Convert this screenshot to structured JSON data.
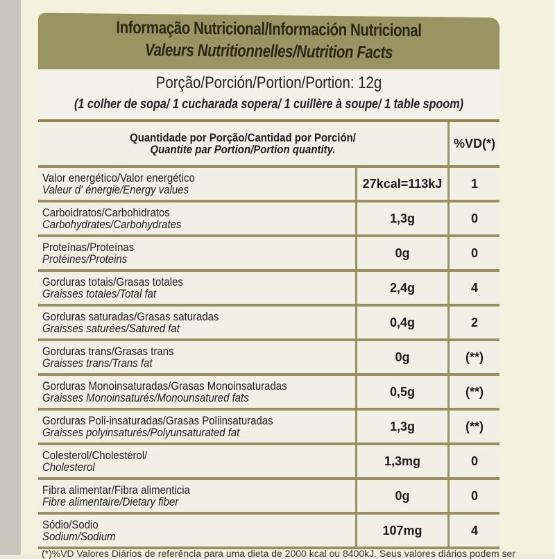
{
  "title_line1": "Informação Nutricional/Información Nutricional",
  "title_line2": "Valeurs Nutritionnelles/Nutrition Facts",
  "portion": "Porção/Porción/Portion/Portion: 12g",
  "portion_desc": "(1 colher de sopa/ 1 cucharada sopera/ 1 cuillère à soupe/ 1 table spoom)",
  "header": {
    "qty1": "Quantidade por Porção/Cantidad por Porción/",
    "qty2": "Quantite par Portion/Portion quantity.",
    "vd": "%VD(*)"
  },
  "rows": [
    {
      "l1": "Valor energético/Valor energético",
      "l2": "Valeur d' énergie/Energy values",
      "value": "27kcal=113kJ",
      "vd": "1"
    },
    {
      "l1": "Carboidratos/Carbohidratos",
      "l2": "Carbohydrates/Carbohydrates",
      "value": "1,3g",
      "vd": "0"
    },
    {
      "l1": "Proteínas/Proteínas",
      "l2": "Protéines/Proteins",
      "value": "0g",
      "vd": "0"
    },
    {
      "l1": "Gorduras totais/Grasas totales",
      "l2": "Graisses totales/Total fat",
      "value": "2,4g",
      "vd": "4"
    },
    {
      "l1": "Gorduras saturadas/Grasas saturadas",
      "l2": "Graisses saturées/Satured fat",
      "value": "0,4g",
      "vd": "2"
    },
    {
      "l1": "Gorduras trans/Grasas trans",
      "l2": "Graisses trans/Trans fat",
      "value": "0g",
      "vd": "(**)"
    },
    {
      "l1": "Gorduras Monoinsaturadas/Grasas Monoinsaturadas",
      "l2": "Graisses Monoinsaturés/Monounsatured fats",
      "value": "0,5g",
      "vd": "(**)"
    },
    {
      "l1": "Gorduras Poli-insaturadas/Grasas Poliinsaturadas",
      "l2": "Graisses polyinsaturés/Polyunsaturated fat",
      "value": "1,3g",
      "vd": "(**)"
    },
    {
      "l1": "Colesterol/Cholestérol/",
      "l2": "Cholesterol",
      "value": "1,3mg",
      "vd": "0"
    },
    {
      "l1": "Fibra alimentar/Fibra alimenticia",
      "l2": "Fibre alimentaire/Dietary fiber",
      "value": "0g",
      "vd": "0"
    },
    {
      "l1": "Sódio/Sodio",
      "l2": "Sodium/Sodium",
      "value": "107mg",
      "vd": "4"
    }
  ],
  "footnote": "(*)%VD Valores Diários de referência para uma dieta de 2000 kcal ou 8400kJ. Seus valores diários podem ser"
}
